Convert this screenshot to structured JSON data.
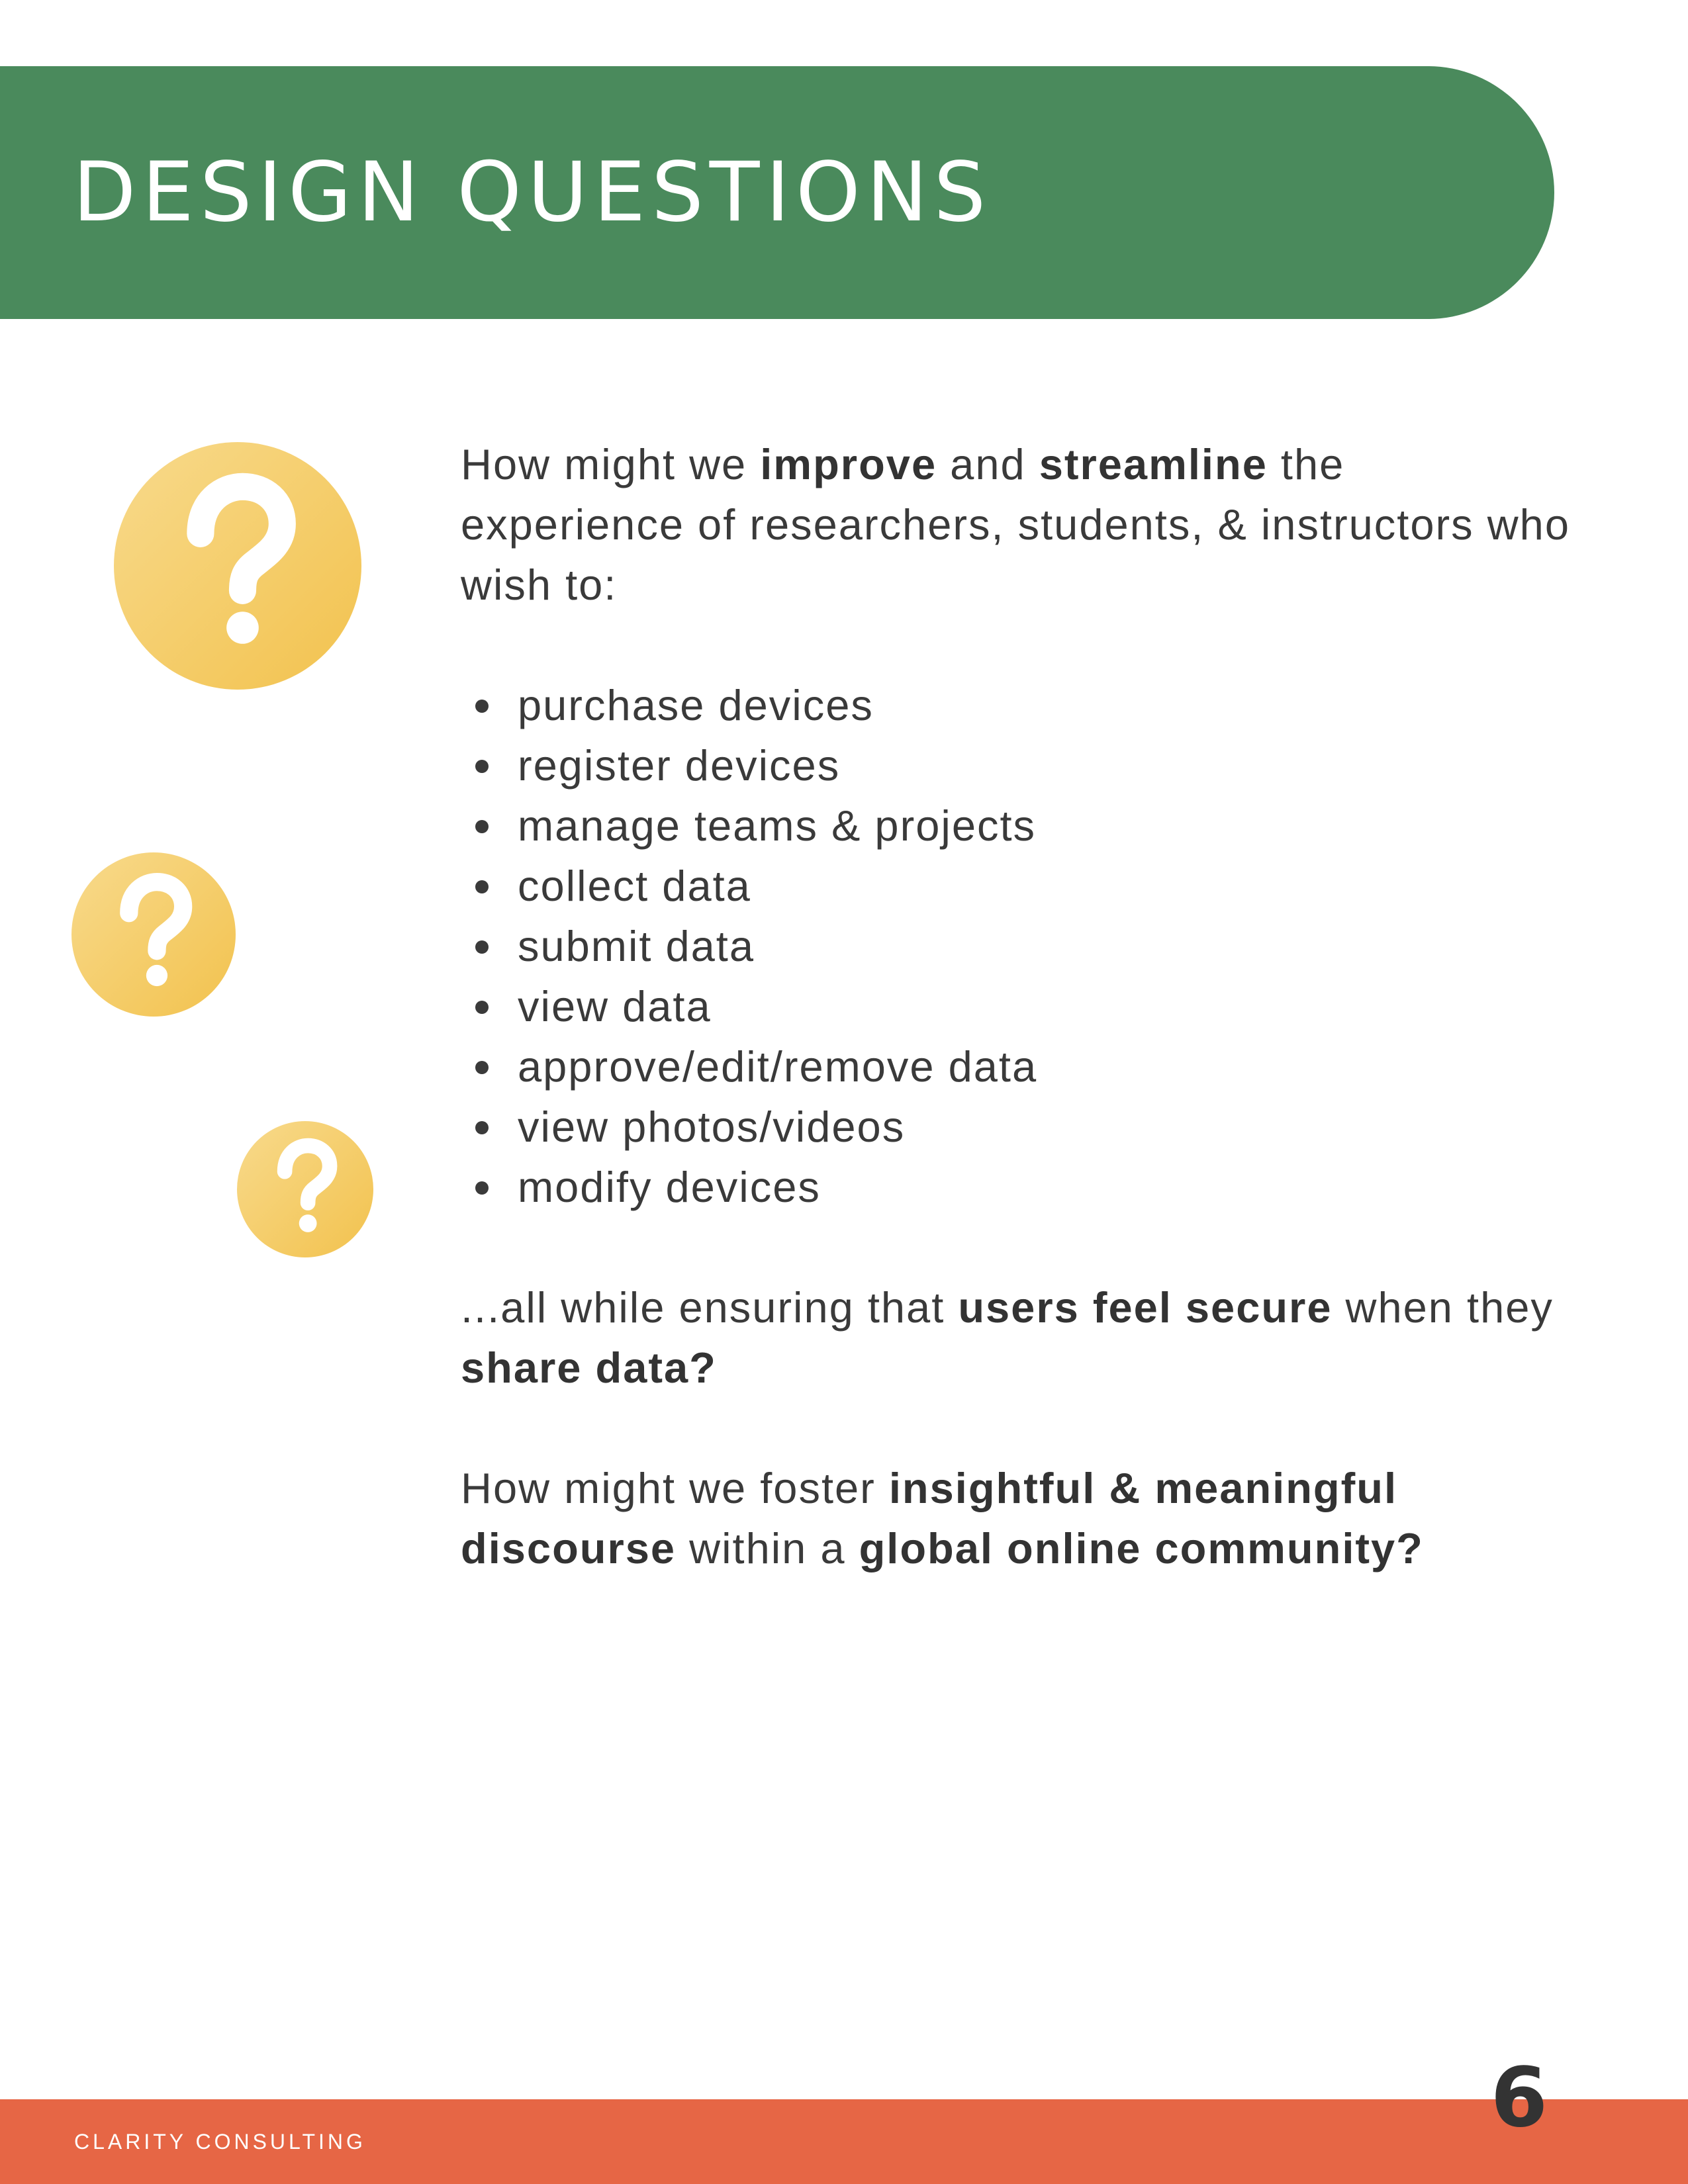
{
  "header": {
    "title": "DESIGN QUESTIONS"
  },
  "icons": {
    "question": "question-mark-icon"
  },
  "colors": {
    "header_green": "#4a8a5c",
    "footer_orange": "#e66645",
    "icon_yellow_light": "#f8da8c",
    "icon_yellow_dark": "#f2c24e",
    "text_dark": "#3a3a3a"
  },
  "question1": {
    "p1": "How might we ",
    "b1": "improve",
    "p2": " and ",
    "b2": "streamline",
    "p3": " the experience of researchers, students, & instructors who wish to:"
  },
  "tasks": [
    "purchase devices",
    "register devices",
    "manage teams & projects",
    "collect data",
    "submit data",
    "view data",
    "approve/edit/remove data",
    "view photos/videos",
    "modify devices"
  ],
  "question1_end": {
    "p1": "...all while ensuring that ",
    "b1": "users feel secure",
    "p2": " when they ",
    "b2": "share data?"
  },
  "question2": {
    "p1": "How might we foster ",
    "b1": "insightful & meaningful discourse",
    "p2": " within a ",
    "b2": "global online community?"
  },
  "footer": {
    "brand": "CLARITY CONSULTING",
    "page_number": "6"
  }
}
